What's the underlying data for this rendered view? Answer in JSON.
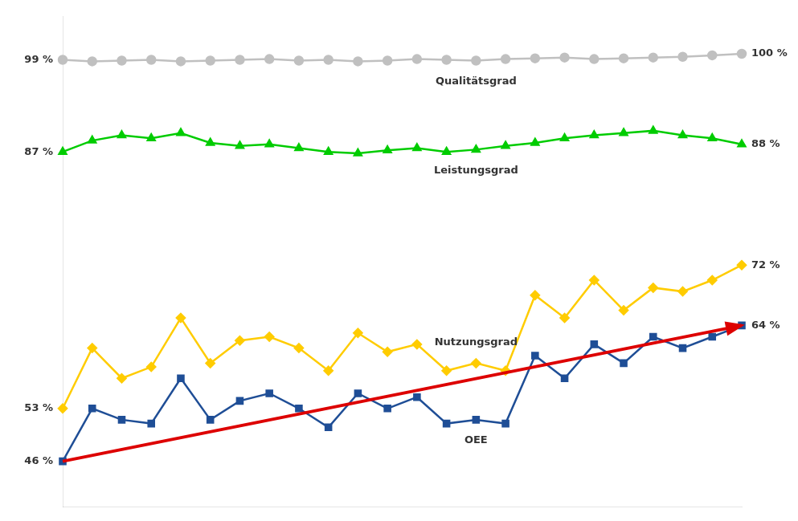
{
  "chart_data": {
    "type": "line",
    "categories": [
      null,
      null,
      null,
      null,
      null,
      null,
      null,
      null,
      null,
      null,
      null,
      null,
      null,
      null,
      null,
      null,
      null,
      null,
      null,
      null,
      null,
      null,
      null,
      null
    ],
    "series": [
      {
        "name": "Qualitätsgrad",
        "color": "#c0c0c0",
        "marker": "circle",
        "values": [
          99.2,
          99.0,
          99.1,
          99.2,
          99.0,
          99.1,
          99.2,
          99.3,
          99.1,
          99.2,
          99.0,
          99.1,
          99.3,
          99.2,
          99.1,
          99.3,
          99.4,
          99.5,
          99.3,
          99.4,
          99.5,
          99.6,
          99.8,
          100.0
        ],
        "value_labels": [
          "99 %",
          null,
          null,
          null,
          null,
          null,
          null,
          null,
          null,
          null,
          null,
          null,
          null,
          null,
          null,
          null,
          null,
          null,
          null,
          null,
          null,
          null,
          null,
          "100 %"
        ]
      },
      {
        "name": "Leistungsgrad",
        "color": "#00cc00",
        "marker": "triangle",
        "values": [
          87.0,
          88.5,
          89.2,
          88.8,
          89.5,
          88.2,
          87.8,
          88.0,
          87.5,
          87.0,
          86.8,
          87.2,
          87.5,
          87.0,
          87.3,
          87.8,
          88.2,
          88.8,
          89.2,
          89.5,
          89.8,
          89.2,
          88.8,
          88.0
        ],
        "value_labels": [
          "87 %",
          null,
          null,
          null,
          null,
          null,
          null,
          null,
          null,
          null,
          null,
          null,
          null,
          null,
          null,
          null,
          null,
          null,
          null,
          null,
          null,
          null,
          null,
          "88 %"
        ]
      },
      {
        "name": "Nutzungsgrad",
        "color": "#ffcc00",
        "marker": "diamond",
        "values": [
          53.0,
          61.0,
          57.0,
          58.5,
          65.0,
          59.0,
          62.0,
          62.5,
          61.0,
          58.0,
          63.0,
          60.5,
          61.5,
          58.0,
          59.0,
          58.0,
          68.0,
          65.0,
          70.0,
          66.0,
          69.0,
          68.5,
          70.0,
          72.0
        ],
        "value_labels": [
          "53 %",
          null,
          null,
          null,
          null,
          null,
          null,
          null,
          null,
          null,
          null,
          null,
          null,
          null,
          null,
          null,
          null,
          null,
          null,
          null,
          null,
          null,
          null,
          "72 %"
        ]
      },
      {
        "name": "OEE",
        "color": "#1f4e96",
        "marker": "square",
        "values": [
          46.0,
          53.0,
          51.5,
          51.0,
          57.0,
          51.5,
          54.0,
          55.0,
          53.0,
          50.5,
          55.0,
          53.0,
          54.5,
          51.0,
          51.5,
          51.0,
          60.0,
          57.0,
          61.5,
          59.0,
          62.5,
          61.0,
          62.5,
          64.0
        ],
        "value_labels": [
          "46 %",
          null,
          null,
          null,
          null,
          null,
          null,
          null,
          null,
          null,
          null,
          null,
          null,
          null,
          null,
          null,
          null,
          null,
          null,
          null,
          null,
          null,
          null,
          "64 %"
        ]
      },
      {
        "type": "arrow",
        "color": "#dd0000",
        "values": [
          46.0,
          null,
          null,
          null,
          null,
          null,
          null,
          null,
          null,
          null,
          null,
          null,
          null,
          null,
          null,
          null,
          null,
          null,
          null,
          null,
          null,
          null,
          null,
          64.0
        ]
      }
    ],
    "ylim": [
      40,
      105
    ],
    "grid": false,
    "tick_labels": false
  }
}
